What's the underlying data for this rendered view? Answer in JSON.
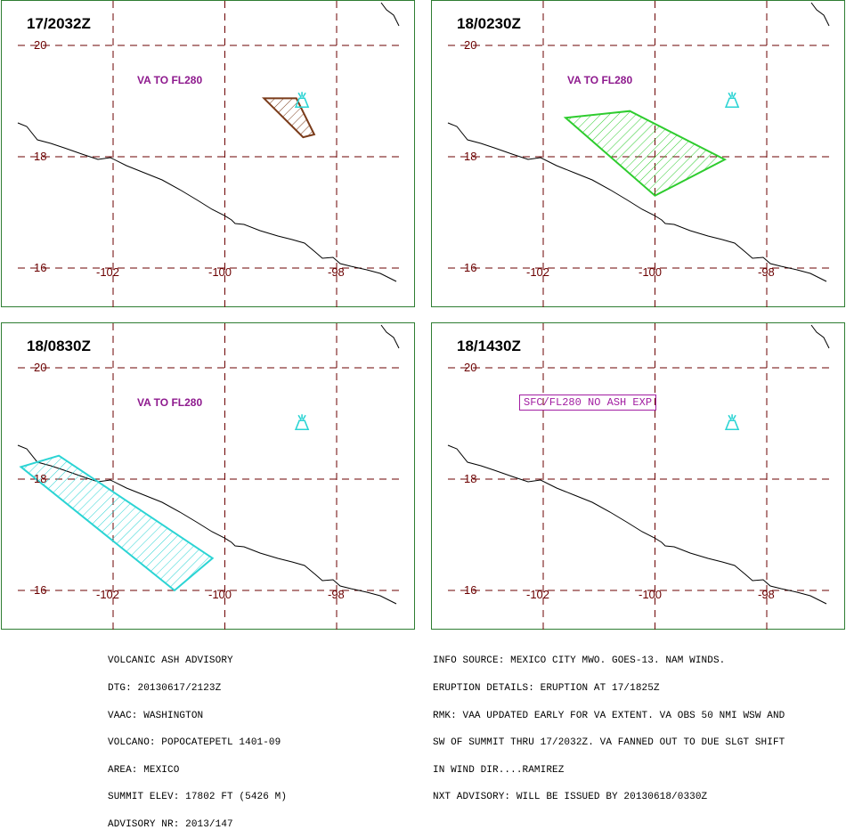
{
  "panels": [
    {
      "time_label": "17/2032Z",
      "note": "VA TO FL280",
      "note_style": "plain",
      "ash_area": {
        "color": "#7a3b1a",
        "hatch": "#7a3b1a",
        "polygon": [
          [
            -99.3,
            19.05
          ],
          [
            -98.72,
            19.05
          ],
          [
            -98.4,
            18.4
          ],
          [
            -98.6,
            18.35
          ]
        ]
      }
    },
    {
      "time_label": "18/0230Z",
      "note": "VA TO FL280",
      "note_style": "plain",
      "ash_area": {
        "color": "#2ecc2e",
        "hatch": "#2ecc2e",
        "polygon": [
          [
            -101.6,
            18.7
          ],
          [
            -100.45,
            18.82
          ],
          [
            -98.75,
            17.95
          ],
          [
            -100.0,
            17.3
          ]
        ]
      }
    },
    {
      "time_label": "18/0830Z",
      "note": "VA TO FL280",
      "note_style": "plain",
      "ash_area": {
        "color": "#2bd4d4",
        "hatch": "#2bd4d4",
        "polygon": [
          [
            -103.65,
            18.22
          ],
          [
            -102.97,
            18.42
          ],
          [
            -100.22,
            16.58
          ],
          [
            -100.9,
            16.0
          ]
        ]
      }
    },
    {
      "time_label": "18/1430Z",
      "note": "SFC/FL280 NO ASH EXP",
      "note_style": "boxed",
      "ash_area": null
    }
  ],
  "grid": {
    "lat_labels": [
      "20",
      "18",
      "16"
    ],
    "lon_labels": [
      "-102",
      "-100",
      "-98"
    ],
    "line_color": "#6b0000"
  },
  "volcano": {
    "name_icon": "volcano-icon",
    "lon": -98.62,
    "lat": 19.02,
    "color": "#2bd4d4"
  },
  "advisory_left": [
    "VOLCANIC ASH ADVISORY",
    "DTG: 20130617/2123Z",
    "VAAC: WASHINGTON",
    "VOLCANO: POPOCATEPETL 1401-09",
    "AREA: MEXICO",
    "SUMMIT ELEV: 17802 FT (5426 M)",
    "ADVISORY NR: 2013/147"
  ],
  "advisory_right": [
    "INFO SOURCE: MEXICO CITY MWO. GOES-13. NAM WINDS.",
    "ERUPTION DETAILS: ERUPTION AT 17/1825Z",
    "RMK: VAA UPDATED EARLY FOR VA EXTENT. VA OBS 50 NMI WSW AND",
    "SW OF SUMMIT THRU 17/2032Z. VA FANNED OUT TO DUE SLGT SHIFT",
    "IN WIND DIR....RAMIREZ",
    "NXT ADVISORY: WILL BE ISSUED BY 20130618/0330Z"
  ]
}
